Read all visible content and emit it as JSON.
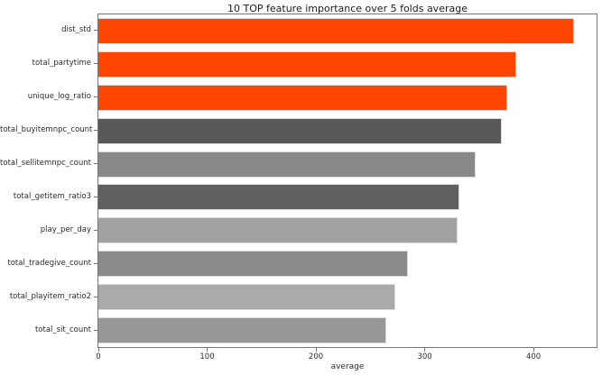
{
  "chart_data": {
    "type": "bar",
    "orientation": "horizontal",
    "title": "10 TOP feature importance over 5 folds average",
    "xlabel": "average",
    "ylabel": "",
    "categories": [
      "dist_std",
      "total_partytime",
      "unique_log_ratio",
      "total_buyitemnpc_count",
      "total_sellitemnpc_count",
      "total_getitem_ratio3",
      "play_per_day",
      "total_tradegive_count",
      "total_playitem_ratio2",
      "total_sit_count"
    ],
    "values": [
      437,
      384,
      376,
      371,
      347,
      332,
      330,
      285,
      273,
      265
    ],
    "bar_colors": [
      "#ff4500",
      "#ff4500",
      "#ff4500",
      "#585858",
      "#888888",
      "#606060",
      "#a2a2a2",
      "#8a8a8a",
      "#aaaaaa",
      "#989898"
    ],
    "bar_edge_color": "#dcdcdc",
    "highlight_color": "#ff4500",
    "xticks": [
      0,
      100,
      200,
      300,
      400
    ],
    "xlim": [
      0,
      458
    ],
    "grid": false,
    "legend": "none",
    "background_color": "#ffffff",
    "spine_color": "#767676"
  }
}
